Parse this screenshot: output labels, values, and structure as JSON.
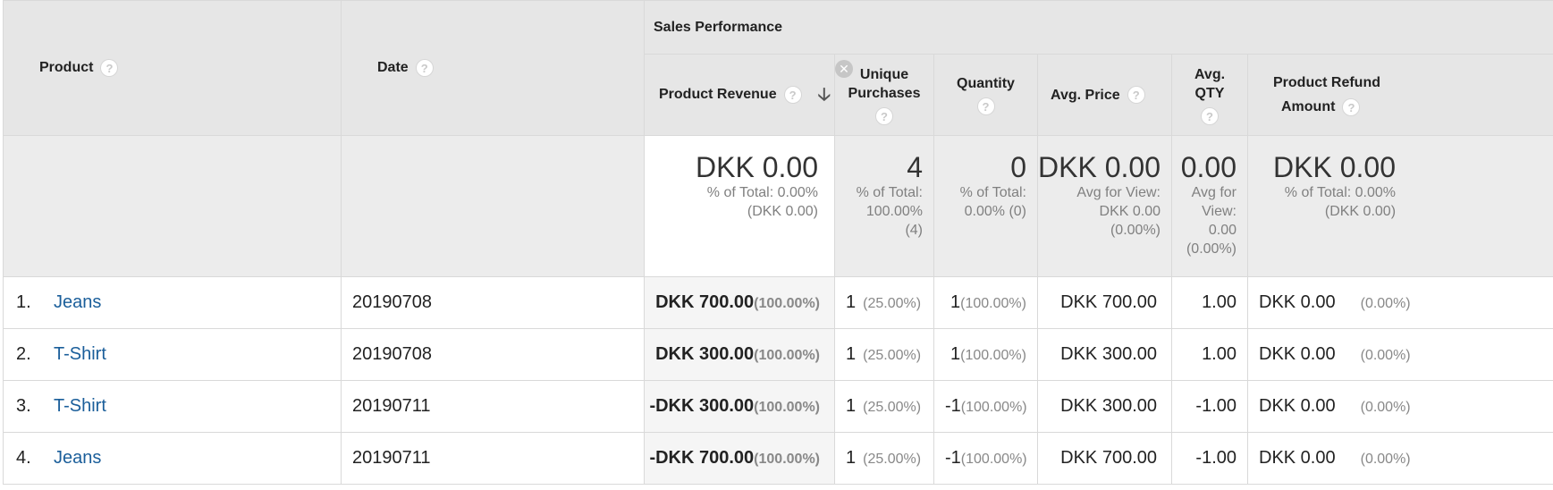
{
  "headers": {
    "product": "Product",
    "date": "Date",
    "group": "Sales Performance",
    "product_revenue": "Product Revenue",
    "unique_purchases": [
      "Unique",
      "Purchases"
    ],
    "quantity": "Quantity",
    "avg_price": "Avg. Price",
    "avg_qty": [
      "Avg.",
      "QTY"
    ],
    "product_refund_amount": [
      "Product Refund",
      "Amount"
    ]
  },
  "icons": {
    "help": "?",
    "remove": "✕",
    "sort": "🡣"
  },
  "totals": {
    "product_revenue": {
      "value": "DKK 0.00",
      "sub": [
        "% of Total: 0.00%",
        "(DKK 0.00)"
      ]
    },
    "unique_purchases": {
      "value": "4",
      "sub": [
        "% of Total:",
        "100.00%",
        "(4)"
      ]
    },
    "quantity": {
      "value": "0",
      "sub": [
        "% of Total:",
        "0.00% (0)"
      ]
    },
    "avg_price": {
      "value": "DKK 0.00",
      "sub": [
        "Avg for View:",
        "DKK 0.00",
        "(0.00%)"
      ]
    },
    "avg_qty": {
      "value": "0.00",
      "sub": [
        "Avg for",
        "View:",
        "0.00",
        "(0.00%)"
      ]
    },
    "product_refund_amount": {
      "value": "DKK 0.00",
      "sub": [
        "% of Total: 0.00%",
        "(DKK 0.00)"
      ]
    }
  },
  "rows": [
    {
      "index": "1.",
      "product": "Jeans",
      "date": "20190708",
      "revenue": "DKK 700.00",
      "revenue_pct": "(100.00%)",
      "unique": "1",
      "unique_pct": "(25.00%)",
      "qty": "1",
      "qty_pct": "(100.00%)",
      "avg_price": "DKK 700.00",
      "avg_qty": "1.00",
      "refund": "DKK 0.00",
      "refund_pct": "(0.00%)"
    },
    {
      "index": "2.",
      "product": "T-Shirt",
      "date": "20190708",
      "revenue": "DKK 300.00",
      "revenue_pct": "(100.00%)",
      "unique": "1",
      "unique_pct": "(25.00%)",
      "qty": "1",
      "qty_pct": "(100.00%)",
      "avg_price": "DKK 300.00",
      "avg_qty": "1.00",
      "refund": "DKK 0.00",
      "refund_pct": "(0.00%)"
    },
    {
      "index": "3.",
      "product": "T-Shirt",
      "date": "20190711",
      "revenue": "-DKK 300.00",
      "revenue_pct": "(100.00%)",
      "unique": "1",
      "unique_pct": "(25.00%)",
      "qty": "-1",
      "qty_pct": "(100.00%)",
      "avg_price": "DKK 300.00",
      "avg_qty": "-1.00",
      "refund": "DKK 0.00",
      "refund_pct": "(0.00%)"
    },
    {
      "index": "4.",
      "product": "Jeans",
      "date": "20190711",
      "revenue": "-DKK 700.00",
      "revenue_pct": "(100.00%)",
      "unique": "1",
      "unique_pct": "(25.00%)",
      "qty": "-1",
      "qty_pct": "(100.00%)",
      "avg_price": "DKK 700.00",
      "avg_qty": "-1.00",
      "refund": "DKK 0.00",
      "refund_pct": "(0.00%)"
    }
  ]
}
